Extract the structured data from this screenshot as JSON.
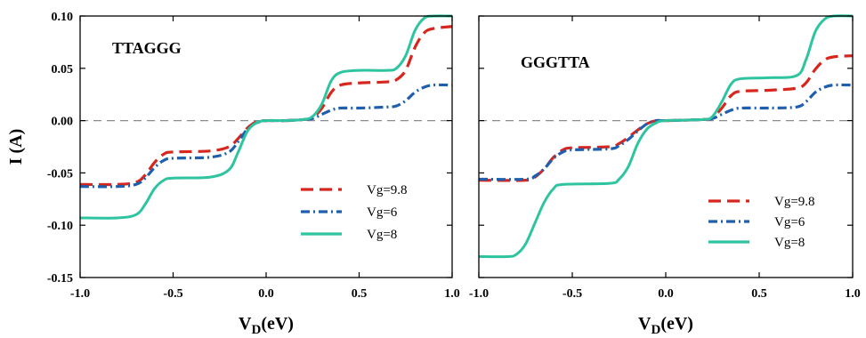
{
  "chart_data": [
    {
      "type": "line",
      "title": "TTAGGG",
      "xlabel_main": "V",
      "xlabel_sub": "D",
      "xlabel_unit": "(eV)",
      "ylabel": "I (A)",
      "xlim": [
        -1.0,
        1.0
      ],
      "ylim": [
        -0.15,
        0.1
      ],
      "xticks": [
        "-1.0",
        "-0.5",
        "0.0",
        "0.5",
        "1.0"
      ],
      "yticks": [
        "0.10",
        "0.05",
        "0.00",
        "-0.05",
        "-0.10",
        "-0.15"
      ],
      "reference_line_y": 0.0,
      "legend_position": "lower-right",
      "series": [
        {
          "name": "Vg=9.8",
          "color": "#d7261e",
          "style": "dashed",
          "x": [
            -1.0,
            -0.8,
            -0.7,
            -0.65,
            -0.6,
            -0.55,
            -0.5,
            -0.3,
            -0.2,
            -0.15,
            -0.1,
            -0.05,
            0.0,
            0.1,
            0.2,
            0.25,
            0.3,
            0.35,
            0.4,
            0.5,
            0.65,
            0.7,
            0.75,
            0.8,
            0.85,
            0.9,
            1.0
          ],
          "y": [
            -0.061,
            -0.061,
            -0.059,
            -0.052,
            -0.04,
            -0.032,
            -0.03,
            -0.029,
            -0.025,
            -0.017,
            -0.007,
            -0.001,
            0.0,
            0.0,
            0.001,
            0.003,
            0.012,
            0.027,
            0.034,
            0.036,
            0.037,
            0.039,
            0.048,
            0.07,
            0.084,
            0.088,
            0.09
          ]
        },
        {
          "name": "Vg=6",
          "color": "#1f5fad",
          "style": "dashdot",
          "x": [
            -1.0,
            -0.8,
            -0.7,
            -0.65,
            -0.6,
            -0.55,
            -0.5,
            -0.3,
            -0.2,
            -0.15,
            -0.1,
            -0.05,
            0.0,
            0.1,
            0.2,
            0.25,
            0.3,
            0.35,
            0.4,
            0.5,
            0.65,
            0.7,
            0.75,
            0.8,
            0.85,
            0.9,
            1.0
          ],
          "y": [
            -0.063,
            -0.063,
            -0.061,
            -0.055,
            -0.045,
            -0.038,
            -0.036,
            -0.035,
            -0.03,
            -0.02,
            -0.008,
            -0.002,
            0.0,
            0.0,
            0.001,
            0.002,
            0.006,
            0.01,
            0.012,
            0.012,
            0.013,
            0.014,
            0.019,
            0.027,
            0.032,
            0.034,
            0.034
          ]
        },
        {
          "name": "Vg=8",
          "color": "#2ec4a0",
          "style": "solid",
          "x": [
            -1.0,
            -0.8,
            -0.7,
            -0.65,
            -0.6,
            -0.55,
            -0.5,
            -0.3,
            -0.2,
            -0.15,
            -0.1,
            -0.05,
            0.0,
            0.1,
            0.2,
            0.25,
            0.3,
            0.35,
            0.4,
            0.5,
            0.65,
            0.7,
            0.75,
            0.8,
            0.85,
            0.9,
            1.0
          ],
          "y": [
            -0.093,
            -0.093,
            -0.09,
            -0.08,
            -0.065,
            -0.057,
            -0.055,
            -0.054,
            -0.047,
            -0.03,
            -0.01,
            -0.002,
            0.0,
            0.0,
            0.001,
            0.004,
            0.016,
            0.038,
            0.046,
            0.048,
            0.048,
            0.05,
            0.062,
            0.086,
            0.098,
            0.1,
            0.1
          ]
        }
      ]
    },
    {
      "type": "line",
      "title": "GGGTTA",
      "xlabel_main": "V",
      "xlabel_sub": "D",
      "xlabel_unit": "(eV)",
      "ylabel": "",
      "xlim": [
        -1.0,
        1.0
      ],
      "ylim": [
        -0.15,
        0.1
      ],
      "xticks": [
        "-1.0",
        "-0.5",
        "0.0",
        "0.5",
        "1.0"
      ],
      "yticks": [],
      "reference_line_y": 0.0,
      "legend_position": "lower-right",
      "series": [
        {
          "name": "Vg=9.8",
          "color": "#d7261e",
          "style": "dashed",
          "x": [
            -1.0,
            -0.75,
            -0.7,
            -0.65,
            -0.6,
            -0.55,
            -0.5,
            -0.3,
            -0.25,
            -0.2,
            -0.15,
            -0.1,
            -0.05,
            0.0,
            0.2,
            0.25,
            0.3,
            0.35,
            0.4,
            0.55,
            0.7,
            0.75,
            0.8,
            0.85,
            0.9,
            1.0
          ],
          "y": [
            -0.057,
            -0.057,
            -0.054,
            -0.046,
            -0.035,
            -0.028,
            -0.026,
            -0.025,
            -0.022,
            -0.016,
            -0.009,
            -0.003,
            0.0,
            0.0,
            0.001,
            0.003,
            0.012,
            0.024,
            0.028,
            0.029,
            0.031,
            0.036,
            0.049,
            0.058,
            0.061,
            0.062
          ]
        },
        {
          "name": "Vg=6",
          "color": "#1f5fad",
          "style": "dashdot",
          "x": [
            -1.0,
            -0.75,
            -0.7,
            -0.65,
            -0.6,
            -0.55,
            -0.5,
            -0.3,
            -0.25,
            -0.2,
            -0.15,
            -0.1,
            -0.05,
            0.0,
            0.2,
            0.25,
            0.3,
            0.35,
            0.4,
            0.55,
            0.7,
            0.75,
            0.8,
            0.85,
            0.9,
            1.0
          ],
          "y": [
            -0.056,
            -0.056,
            -0.053,
            -0.046,
            -0.036,
            -0.03,
            -0.028,
            -0.027,
            -0.024,
            -0.018,
            -0.01,
            -0.003,
            0.0,
            0.0,
            0.001,
            0.002,
            0.006,
            0.01,
            0.012,
            0.012,
            0.013,
            0.018,
            0.027,
            0.032,
            0.034,
            0.034
          ]
        },
        {
          "name": "Vg=8",
          "color": "#2ec4a0",
          "style": "solid",
          "x": [
            -1.0,
            -0.85,
            -0.8,
            -0.75,
            -0.7,
            -0.65,
            -0.6,
            -0.55,
            -0.3,
            -0.25,
            -0.2,
            -0.15,
            -0.1,
            -0.05,
            0.0,
            0.2,
            0.25,
            0.3,
            0.35,
            0.4,
            0.55,
            0.7,
            0.75,
            0.8,
            0.85,
            0.9,
            1.0
          ],
          "y": [
            -0.13,
            -0.13,
            -0.128,
            -0.118,
            -0.098,
            -0.078,
            -0.065,
            -0.061,
            -0.06,
            -0.056,
            -0.044,
            -0.022,
            -0.008,
            -0.002,
            0.0,
            0.001,
            0.004,
            0.018,
            0.035,
            0.04,
            0.041,
            0.043,
            0.058,
            0.085,
            0.097,
            0.1,
            0.1
          ]
        }
      ]
    }
  ]
}
